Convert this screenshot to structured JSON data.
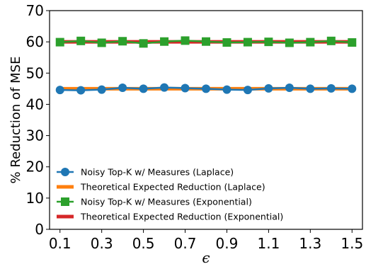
{
  "chart_data": {
    "type": "line",
    "xlabel": "ϵ",
    "ylabel": "% Reduction of MSE",
    "xlim": [
      0.05,
      1.55
    ],
    "ylim": [
      0,
      70
    ],
    "xticks": [
      0.1,
      0.3,
      0.5,
      0.7,
      0.9,
      1.1,
      1.3,
      1.5
    ],
    "xtick_labels": [
      "0.1",
      "0.3",
      "0.5",
      "0.7",
      "0.9",
      "1.1",
      "1.3",
      "1.5"
    ],
    "yticks": [
      0,
      10,
      20,
      30,
      40,
      50,
      60,
      70
    ],
    "ytick_labels": [
      "0",
      "10",
      "20",
      "30",
      "40",
      "50",
      "60",
      "70"
    ],
    "grid": false,
    "legend_position": "lower-left",
    "x": [
      0.1,
      0.2,
      0.3,
      0.4,
      0.5,
      0.6,
      0.7,
      0.8,
      0.9,
      1.0,
      1.1,
      1.2,
      1.3,
      1.4,
      1.5
    ],
    "series": [
      {
        "name": "Noisy Top-K w/ Measures (Laplace)",
        "marker": "circle",
        "color": "#1f77b4",
        "values": [
          44.6,
          44.5,
          44.7,
          45.3,
          45.0,
          45.4,
          45.2,
          45.0,
          44.7,
          44.6,
          45.1,
          45.3,
          45.0,
          45.1,
          45.0
        ]
      },
      {
        "name": "Theoretical Expected Reduction (Laplace)",
        "marker": "none",
        "color": "#ff7f0e",
        "values": [
          45.0,
          45.0,
          45.0,
          45.0,
          45.0,
          45.0,
          45.0,
          45.0,
          45.0,
          45.0,
          45.0,
          45.0,
          45.0,
          45.0,
          45.0
        ]
      },
      {
        "name": "Noisy Top-K w/ Measures (Exponential)",
        "marker": "square",
        "color": "#2ca02c",
        "values": [
          59.9,
          60.3,
          59.7,
          60.2,
          59.5,
          60.1,
          60.4,
          60.1,
          59.8,
          59.9,
          60.0,
          59.7,
          59.9,
          60.3,
          59.8
        ]
      },
      {
        "name": "Theoretical Expected Reduction (Exponential)",
        "marker": "none",
        "color": "#d62728",
        "values": [
          60.0,
          60.0,
          60.0,
          60.0,
          60.0,
          60.0,
          60.0,
          60.0,
          60.0,
          60.0,
          60.0,
          60.0,
          60.0,
          60.0,
          60.0
        ]
      }
    ]
  }
}
